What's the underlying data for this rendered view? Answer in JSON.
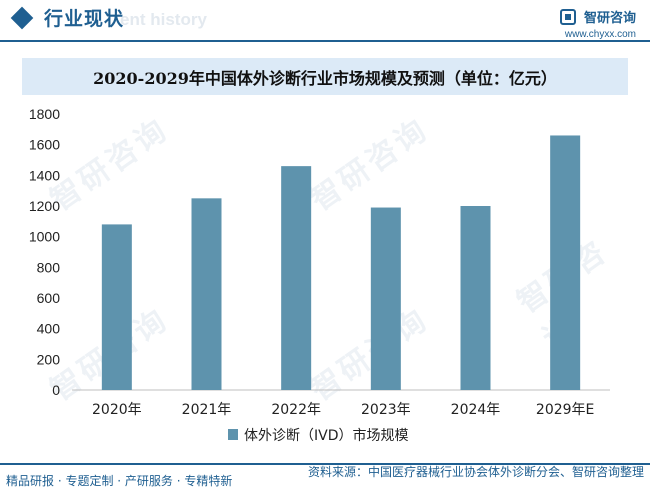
{
  "header": {
    "title": "行业现状",
    "ghost_text": "ent history"
  },
  "brand": {
    "name": "智研咨询",
    "url": "www.chyxx.com"
  },
  "watermark_text": "智研咨询",
  "chart_data": {
    "type": "bar",
    "title": "2020-2029年中国体外诊断行业市场规模及预测（单位：亿元）",
    "categories": [
      "2020年",
      "2021年",
      "2022年",
      "2023年",
      "2024年",
      "2029年E"
    ],
    "series": [
      {
        "name": "体外诊断（IVD）市场规模",
        "values": [
          1080,
          1250,
          1460,
          1190,
          1200,
          1660
        ]
      }
    ],
    "ylim": [
      0,
      1800
    ],
    "yticks": [
      0,
      200,
      400,
      600,
      800,
      1000,
      1200,
      1400,
      1600,
      1800
    ],
    "xlabel": "",
    "ylabel": "",
    "grid": false,
    "legend": "bottom-center",
    "bar_color": "#5e93ad"
  },
  "footer": {
    "left": "精品研报 · 专题定制 · 产研服务 · 专精特新",
    "right": "资料来源：中国医疗器械行业协会体外诊断分会、智研咨询整理"
  }
}
